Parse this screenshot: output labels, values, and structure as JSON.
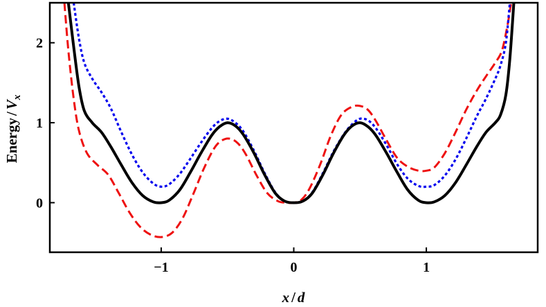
{
  "chart_data": {
    "type": "line",
    "xlabel": {
      "var": "x",
      "sep": "/",
      "unit": "d"
    },
    "ylabel": {
      "prefix": "Energy",
      "sep": "/",
      "var": "V",
      "sub": "x"
    },
    "xlim": [
      -1.84,
      1.84
    ],
    "ylim": [
      -0.62,
      2.5
    ],
    "xticks": [
      -1,
      0,
      1
    ],
    "xtick_labels": [
      "−1",
      "0",
      "1"
    ],
    "yticks": [
      0,
      1,
      2
    ],
    "ytick_labels": [
      "0",
      "1",
      "2"
    ],
    "grid": false,
    "legend": "none",
    "series": [
      {
        "color": "#000000",
        "style": "solid",
        "x": [
          -1.7,
          -1.66,
          -1.62,
          -1.58,
          -1.52,
          -1.45,
          -1.38,
          -1.3,
          -1.22,
          -1.14,
          -1.06,
          -1.0,
          -0.94,
          -0.86,
          -0.78,
          -0.7,
          -0.62,
          -0.56,
          -0.5,
          -0.44,
          -0.38,
          -0.3,
          -0.22,
          -0.14,
          -0.07,
          0.0,
          0.07,
          0.14,
          0.22,
          0.3,
          0.38,
          0.44,
          0.5,
          0.56,
          0.62,
          0.7,
          0.78,
          0.86,
          0.94,
          1.0,
          1.06,
          1.14,
          1.22,
          1.3,
          1.38,
          1.45,
          1.52,
          1.56,
          1.6,
          1.63,
          1.66
        ],
        "y": [
          2.5,
          1.95,
          1.45,
          1.15,
          1.0,
          0.88,
          0.7,
          0.47,
          0.25,
          0.09,
          0.01,
          0.0,
          0.03,
          0.16,
          0.38,
          0.62,
          0.84,
          0.95,
          1.0,
          0.96,
          0.85,
          0.62,
          0.35,
          0.12,
          0.02,
          0.0,
          0.02,
          0.12,
          0.35,
          0.62,
          0.85,
          0.96,
          1.0,
          0.95,
          0.84,
          0.62,
          0.38,
          0.16,
          0.03,
          0.0,
          0.01,
          0.09,
          0.25,
          0.47,
          0.7,
          0.88,
          1.0,
          1.1,
          1.35,
          1.8,
          2.5
        ]
      },
      {
        "color": "#0000ee",
        "style": "dotted",
        "x": [
          -1.66,
          -1.62,
          -1.58,
          -1.52,
          -1.45,
          -1.38,
          -1.3,
          -1.22,
          -1.14,
          -1.06,
          -1.0,
          -0.94,
          -0.86,
          -0.78,
          -0.7,
          -0.62,
          -0.56,
          -0.5,
          -0.44,
          -0.38,
          -0.3,
          -0.22,
          -0.14,
          -0.07,
          0.0,
          0.07,
          0.14,
          0.22,
          0.3,
          0.38,
          0.44,
          0.5,
          0.56,
          0.62,
          0.7,
          0.78,
          0.86,
          0.94,
          1.0,
          1.06,
          1.14,
          1.22,
          1.3,
          1.38,
          1.45,
          1.52,
          1.56,
          1.6,
          1.63
        ],
        "y": [
          2.5,
          2.05,
          1.75,
          1.55,
          1.38,
          1.18,
          0.88,
          0.6,
          0.38,
          0.24,
          0.2,
          0.23,
          0.36,
          0.55,
          0.75,
          0.93,
          1.02,
          1.05,
          1.0,
          0.89,
          0.65,
          0.37,
          0.13,
          0.02,
          0.0,
          0.02,
          0.13,
          0.37,
          0.64,
          0.86,
          0.98,
          1.05,
          1.03,
          0.93,
          0.72,
          0.48,
          0.3,
          0.21,
          0.2,
          0.22,
          0.34,
          0.54,
          0.8,
          1.08,
          1.3,
          1.55,
          1.72,
          2.0,
          2.5
        ]
      },
      {
        "color": "#ee1111",
        "style": "dashed",
        "x": [
          -1.73,
          -1.7,
          -1.66,
          -1.62,
          -1.56,
          -1.48,
          -1.4,
          -1.32,
          -1.24,
          -1.16,
          -1.08,
          -1.0,
          -0.92,
          -0.84,
          -0.76,
          -0.68,
          -0.6,
          -0.54,
          -0.48,
          -0.42,
          -0.36,
          -0.28,
          -0.2,
          -0.12,
          -0.06,
          0.0,
          0.06,
          0.12,
          0.2,
          0.28,
          0.36,
          0.44,
          0.5,
          0.56,
          0.62,
          0.7,
          0.78,
          0.86,
          0.94,
          1.0,
          1.06,
          1.14,
          1.22,
          1.3,
          1.38,
          1.45,
          1.52,
          1.57,
          1.61,
          1.64
        ],
        "y": [
          2.5,
          1.9,
          1.3,
          0.9,
          0.62,
          0.47,
          0.35,
          0.12,
          -0.12,
          -0.3,
          -0.4,
          -0.43,
          -0.38,
          -0.2,
          0.1,
          0.42,
          0.68,
          0.78,
          0.8,
          0.74,
          0.6,
          0.34,
          0.12,
          0.02,
          0.0,
          0.0,
          0.04,
          0.18,
          0.48,
          0.84,
          1.1,
          1.2,
          1.21,
          1.16,
          1.02,
          0.78,
          0.56,
          0.45,
          0.4,
          0.4,
          0.44,
          0.62,
          0.88,
          1.16,
          1.4,
          1.58,
          1.75,
          1.9,
          2.2,
          2.5
        ]
      }
    ]
  }
}
